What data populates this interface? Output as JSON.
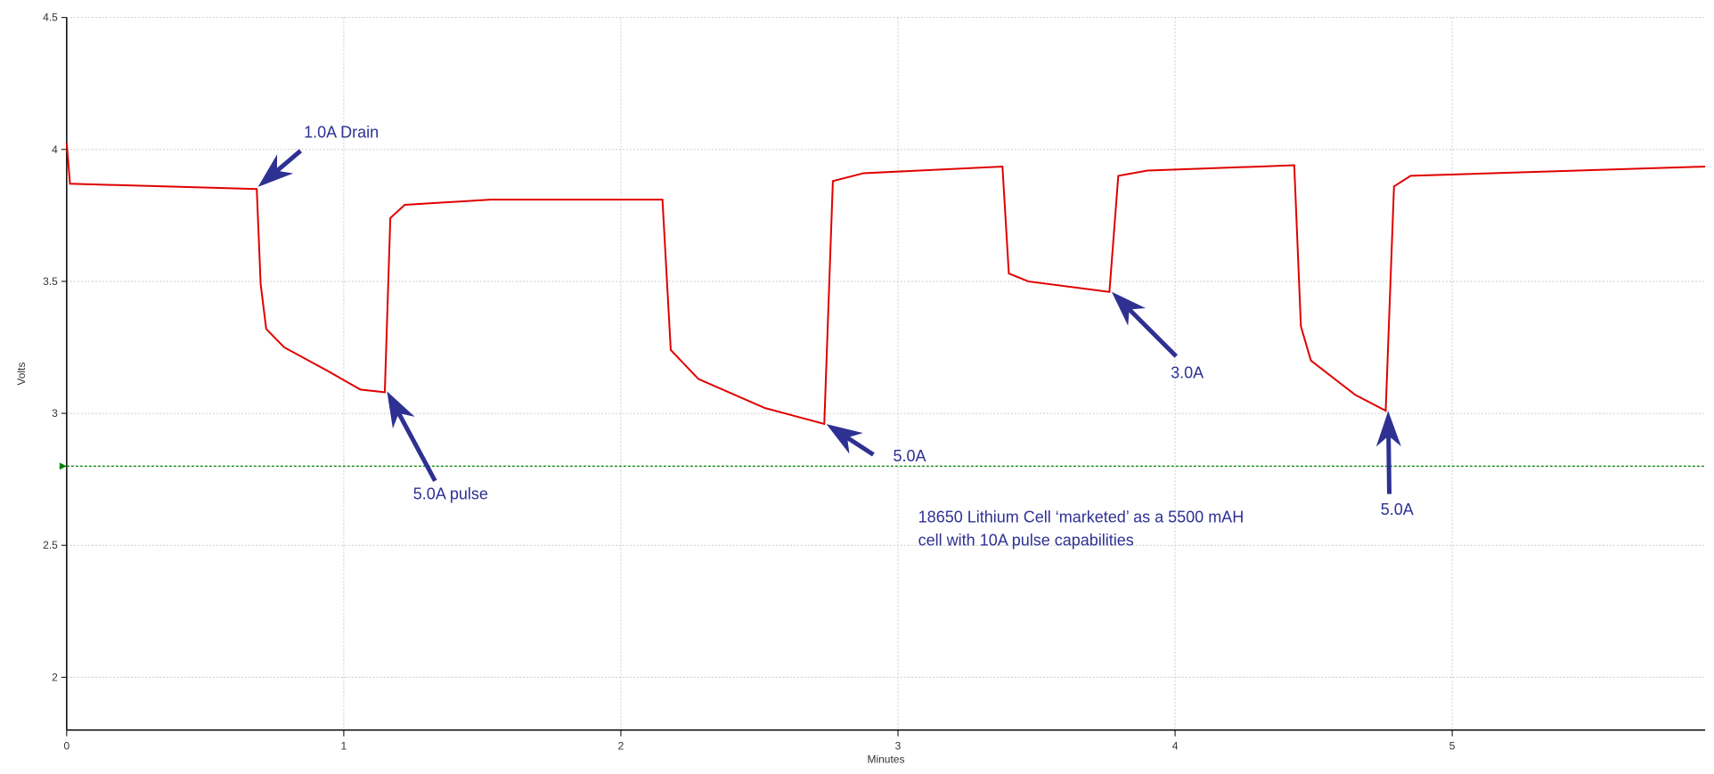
{
  "chart_data": {
    "type": "line",
    "xlabel": "Minutes",
    "ylabel": "Volts",
    "x": [
      0,
      0.012,
      0.686,
      0.7,
      0.72,
      0.785,
      0.943,
      1.06,
      1.148,
      1.168,
      1.22,
      1.53,
      2.126,
      2.15,
      2.18,
      2.28,
      2.52,
      2.734,
      2.765,
      2.876,
      3.377,
      3.4,
      3.47,
      3.763,
      3.795,
      3.9,
      4.43,
      4.454,
      4.49,
      4.65,
      4.76,
      4.79,
      4.85,
      5.913
    ],
    "series": [
      {
        "color": "#e00000",
        "values": [
          4.025,
          3.87,
          3.85,
          3.49,
          3.32,
          3.25,
          3.16,
          3.09,
          3.08,
          3.74,
          3.79,
          3.81,
          3.81,
          3.81,
          3.24,
          3.13,
          3.02,
          2.96,
          3.88,
          3.91,
          3.935,
          3.53,
          3.5,
          3.46,
          3.9,
          3.92,
          3.94,
          3.33,
          3.2,
          3.07,
          3.01,
          3.86,
          3.9,
          3.935
        ]
      }
    ],
    "reference_line": {
      "value": 2.8,
      "color": "#008000"
    },
    "xlim": [
      0,
      5.913
    ],
    "ylim": [
      1.8,
      4.5
    ],
    "xticks": [
      0,
      1,
      2,
      3,
      4,
      5
    ],
    "yticks": [
      2,
      2.5,
      3,
      3.5,
      4,
      4.5
    ],
    "grid": true,
    "annotations": [
      "1.0A Drain",
      "5.0A pulse",
      "5.0A",
      "3.0A",
      "5.0A"
    ],
    "note": [
      "18650 Lithium Cell ‘marketed’ as a 5500 mAH",
      "cell with 10A pulse capabilities"
    ],
    "annotation_color": "#2e3192"
  }
}
